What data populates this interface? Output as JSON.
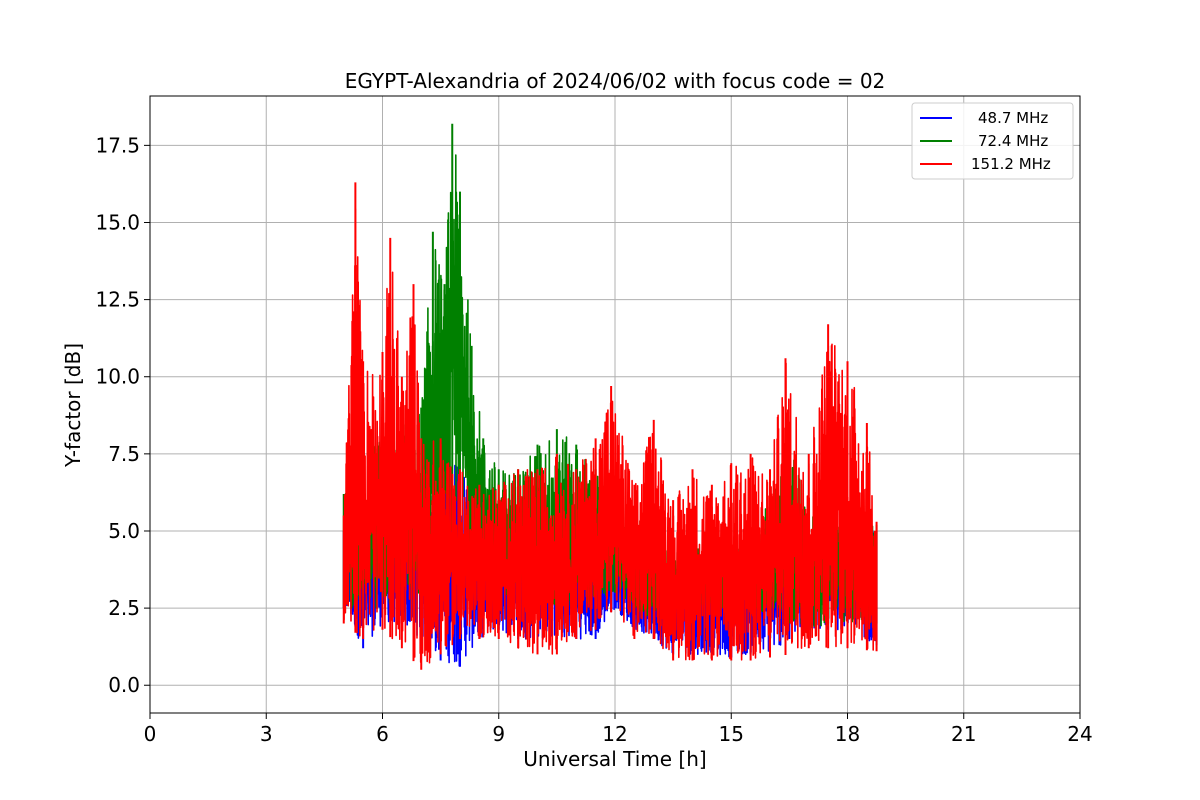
{
  "chart_data": {
    "type": "line",
    "title": "EGYPT-Alexandria of 2024/06/02 with focus code = 02",
    "xlabel": "Universal Time [h]",
    "ylabel": "Y-factor [dB]",
    "xlim": [
      0,
      24
    ],
    "ylim": [
      -0.9,
      19.1
    ],
    "xticks": [
      0,
      3,
      6,
      9,
      12,
      15,
      18,
      21,
      24
    ],
    "yticks": [
      0.0,
      2.5,
      5.0,
      7.5,
      10.0,
      12.5,
      15.0,
      17.5
    ],
    "xtick_labels": [
      "0",
      "3",
      "6",
      "9",
      "12",
      "15",
      "18",
      "21",
      "24"
    ],
    "ytick_labels": [
      "0.0",
      "2.5",
      "5.0",
      "7.5",
      "10.0",
      "12.5",
      "15.0",
      "17.5"
    ],
    "grid": true,
    "legend_position": "top-right",
    "series": [
      {
        "name": "48.7 MHz",
        "color": "#0000ff",
        "points": [
          [
            5.0,
            3.5
          ],
          [
            5.3,
            4.2
          ],
          [
            5.6,
            3.0
          ],
          [
            6.0,
            4.5
          ],
          [
            6.4,
            4.2
          ],
          [
            6.8,
            3.8
          ],
          [
            7.2,
            4.5
          ],
          [
            7.6,
            5.0
          ],
          [
            8.0,
            4.3
          ],
          [
            8.4,
            3.8
          ],
          [
            8.8,
            3.5
          ],
          [
            9.2,
            4.0
          ],
          [
            9.6,
            3.8
          ],
          [
            10.0,
            3.6
          ],
          [
            10.5,
            3.5
          ],
          [
            11.0,
            3.5
          ],
          [
            11.5,
            3.3
          ],
          [
            12.0,
            3.8
          ],
          [
            12.5,
            3.5
          ],
          [
            13.0,
            3.0
          ],
          [
            13.5,
            3.2
          ],
          [
            14.0,
            3.3
          ],
          [
            14.5,
            3.2
          ],
          [
            15.0,
            3.0
          ],
          [
            15.5,
            3.0
          ],
          [
            16.0,
            3.0
          ],
          [
            16.5,
            3.2
          ],
          [
            17.0,
            3.6
          ],
          [
            17.5,
            4.2
          ],
          [
            18.0,
            4.5
          ],
          [
            18.4,
            3.8
          ],
          [
            18.75,
            3.0
          ]
        ],
        "low": [
          [
            5.0,
            2.5
          ],
          [
            5.5,
            1.2
          ],
          [
            6.0,
            2.0
          ],
          [
            6.5,
            2.0
          ],
          [
            7.0,
            1.5
          ],
          [
            7.5,
            0.8
          ],
          [
            8.0,
            0.6
          ],
          [
            8.5,
            1.5
          ],
          [
            9.0,
            1.8
          ],
          [
            9.5,
            1.5
          ],
          [
            10.0,
            1.5
          ],
          [
            10.5,
            1.5
          ],
          [
            11.0,
            1.5
          ],
          [
            11.5,
            1.5
          ],
          [
            12.0,
            2.5
          ],
          [
            12.5,
            1.8
          ],
          [
            13.0,
            1.5
          ],
          [
            13.5,
            1.0
          ],
          [
            14.0,
            1.0
          ],
          [
            14.5,
            1.0
          ],
          [
            15.0,
            0.9
          ],
          [
            15.5,
            1.0
          ],
          [
            16.0,
            1.0
          ],
          [
            16.5,
            1.5
          ],
          [
            17.0,
            1.8
          ],
          [
            17.5,
            1.8
          ],
          [
            18.0,
            1.8
          ],
          [
            18.75,
            1.3
          ]
        ],
        "high": [
          [
            5.0,
            5.0
          ],
          [
            5.5,
            5.5
          ],
          [
            6.0,
            5.8
          ],
          [
            6.5,
            6.0
          ],
          [
            7.0,
            6.5
          ],
          [
            7.5,
            7.0
          ],
          [
            8.0,
            7.4
          ],
          [
            8.5,
            6.0
          ],
          [
            9.0,
            5.5
          ],
          [
            9.5,
            5.5
          ],
          [
            10.0,
            5.6
          ],
          [
            10.5,
            5.8
          ],
          [
            11.0,
            5.2
          ],
          [
            11.5,
            4.8
          ],
          [
            12.0,
            4.5
          ],
          [
            12.5,
            4.5
          ],
          [
            13.0,
            4.2
          ],
          [
            13.5,
            4.3
          ],
          [
            14.0,
            4.2
          ],
          [
            14.5,
            4.5
          ],
          [
            15.0,
            4.5
          ],
          [
            15.5,
            4.3
          ],
          [
            16.0,
            5.0
          ],
          [
            16.5,
            4.8
          ],
          [
            17.0,
            5.0
          ],
          [
            17.5,
            5.5
          ],
          [
            18.0,
            5.8
          ],
          [
            18.75,
            5.0
          ]
        ]
      },
      {
        "name": "72.4 MHz",
        "color": "#008000",
        "low": [
          [
            5.0,
            2.5
          ],
          [
            5.5,
            2.5
          ],
          [
            6.0,
            2.5
          ],
          [
            6.5,
            2.5
          ],
          [
            7.0,
            3.0
          ],
          [
            7.5,
            5.0
          ],
          [
            8.0,
            5.0
          ],
          [
            8.5,
            3.5
          ],
          [
            9.0,
            3.0
          ],
          [
            9.5,
            2.8
          ],
          [
            10.0,
            2.5
          ],
          [
            10.5,
            2.5
          ],
          [
            11.0,
            2.5
          ],
          [
            11.5,
            2.6
          ],
          [
            12.0,
            3.0
          ],
          [
            12.5,
            2.5
          ],
          [
            13.0,
            2.0
          ],
          [
            13.5,
            2.0
          ],
          [
            14.0,
            2.5
          ],
          [
            14.5,
            2.5
          ],
          [
            15.0,
            2.5
          ],
          [
            15.5,
            2.4
          ],
          [
            16.0,
            2.3
          ],
          [
            16.5,
            2.0
          ],
          [
            17.0,
            1.8
          ],
          [
            17.5,
            2.0
          ],
          [
            18.0,
            2.0
          ],
          [
            18.75,
            2.0
          ]
        ],
        "high": [
          [
            5.0,
            6.2
          ],
          [
            5.5,
            7.5
          ],
          [
            6.0,
            8.0
          ],
          [
            6.5,
            8.5
          ],
          [
            7.0,
            9.0
          ],
          [
            7.3,
            14.7
          ],
          [
            7.6,
            13.0
          ],
          [
            7.8,
            18.2
          ],
          [
            8.0,
            16.0
          ],
          [
            8.3,
            11.0
          ],
          [
            8.6,
            8.0
          ],
          [
            9.0,
            7.0
          ],
          [
            9.5,
            7.0
          ],
          [
            10.0,
            7.8
          ],
          [
            10.5,
            8.3
          ],
          [
            11.0,
            7.8
          ],
          [
            11.5,
            7.0
          ],
          [
            12.0,
            6.0
          ],
          [
            12.5,
            5.5
          ],
          [
            13.0,
            5.5
          ],
          [
            13.5,
            4.5
          ],
          [
            14.0,
            4.8
          ],
          [
            14.5,
            4.8
          ],
          [
            15.0,
            4.5
          ],
          [
            15.5,
            4.5
          ],
          [
            16.0,
            6.2
          ],
          [
            16.5,
            7.8
          ],
          [
            17.0,
            6.0
          ],
          [
            17.5,
            5.5
          ],
          [
            18.0,
            5.5
          ],
          [
            18.75,
            5.2
          ]
        ]
      },
      {
        "name": "151.2 MHz",
        "color": "#ff0000",
        "low": [
          [
            5.0,
            2.0
          ],
          [
            5.5,
            1.5
          ],
          [
            6.0,
            1.8
          ],
          [
            6.5,
            1.2
          ],
          [
            7.0,
            0.5
          ],
          [
            7.5,
            1.0
          ],
          [
            8.0,
            1.5
          ],
          [
            8.5,
            1.5
          ],
          [
            9.0,
            1.5
          ],
          [
            9.5,
            1.2
          ],
          [
            10.0,
            1.0
          ],
          [
            10.5,
            1.0
          ],
          [
            11.0,
            1.5
          ],
          [
            11.5,
            1.8
          ],
          [
            12.0,
            2.5
          ],
          [
            12.5,
            1.5
          ],
          [
            13.0,
            1.5
          ],
          [
            13.5,
            0.8
          ],
          [
            14.0,
            0.8
          ],
          [
            14.5,
            0.8
          ],
          [
            15.0,
            0.8
          ],
          [
            15.5,
            0.8
          ],
          [
            16.0,
            0.9
          ],
          [
            16.5,
            1.0
          ],
          [
            17.0,
            1.2
          ],
          [
            17.5,
            1.2
          ],
          [
            18.0,
            1.2
          ],
          [
            18.75,
            1.1
          ]
        ],
        "high": [
          [
            5.0,
            5.5
          ],
          [
            5.3,
            16.3
          ],
          [
            5.5,
            10.5
          ],
          [
            6.0,
            10.8
          ],
          [
            6.2,
            14.5
          ],
          [
            6.5,
            10.0
          ],
          [
            6.8,
            13.0
          ],
          [
            7.0,
            8.0
          ],
          [
            7.5,
            8.0
          ],
          [
            8.0,
            7.0
          ],
          [
            8.5,
            6.5
          ],
          [
            9.0,
            6.5
          ],
          [
            9.5,
            7.0
          ],
          [
            10.0,
            7.0
          ],
          [
            10.5,
            7.5
          ],
          [
            11.0,
            7.0
          ],
          [
            11.5,
            8.0
          ],
          [
            11.9,
            9.7
          ],
          [
            12.5,
            6.5
          ],
          [
            13.0,
            8.6
          ],
          [
            13.5,
            6.0
          ],
          [
            14.0,
            7.0
          ],
          [
            14.5,
            6.5
          ],
          [
            15.0,
            7.2
          ],
          [
            15.5,
            7.5
          ],
          [
            16.0,
            7.0
          ],
          [
            16.4,
            10.6
          ],
          [
            17.0,
            7.5
          ],
          [
            17.5,
            11.7
          ],
          [
            18.0,
            10.5
          ],
          [
            18.5,
            8.5
          ],
          [
            18.75,
            5.3
          ]
        ]
      }
    ]
  }
}
